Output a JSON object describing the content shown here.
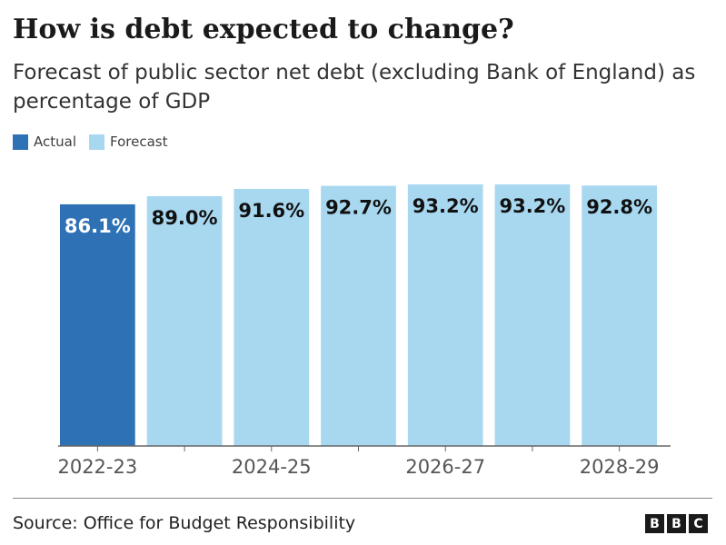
{
  "header": {
    "title": "How is debt expected to change?",
    "subtitle": "Forecast of public sector net debt (excluding Bank of England) as percentage of GDP"
  },
  "legend": {
    "actual": "Actual",
    "forecast": "Forecast"
  },
  "colors": {
    "actual": "#2e71b5",
    "forecast": "#a8d8f0",
    "actual_label": "#ffffff",
    "forecast_label": "#111111",
    "axis": "#666666"
  },
  "chart_data": {
    "type": "bar",
    "categories": [
      "2022-23",
      "2023-24",
      "2024-25",
      "2025-26",
      "2026-27",
      "2027-28",
      "2028-29"
    ],
    "series": [
      {
        "name": "",
        "values": [
          86.1,
          89.0,
          91.6,
          92.7,
          93.2,
          93.2,
          92.8
        ],
        "status": [
          "Actual",
          "Forecast",
          "Forecast",
          "Forecast",
          "Forecast",
          "Forecast",
          "Forecast"
        ]
      }
    ],
    "value_labels": [
      "86.1%",
      "89.0%",
      "91.6%",
      "92.7%",
      "93.2%",
      "93.2%",
      "92.8%"
    ],
    "tick_labels": [
      "2022-23",
      "",
      "2024-25",
      "",
      "2026-27",
      "",
      "2028-29"
    ],
    "ylim": [
      0,
      100
    ],
    "grid": false,
    "legend_position": "top-left"
  },
  "footer": {
    "source": "Source: Office for Budget Responsibility",
    "logo_letters": [
      "B",
      "B",
      "C"
    ]
  }
}
